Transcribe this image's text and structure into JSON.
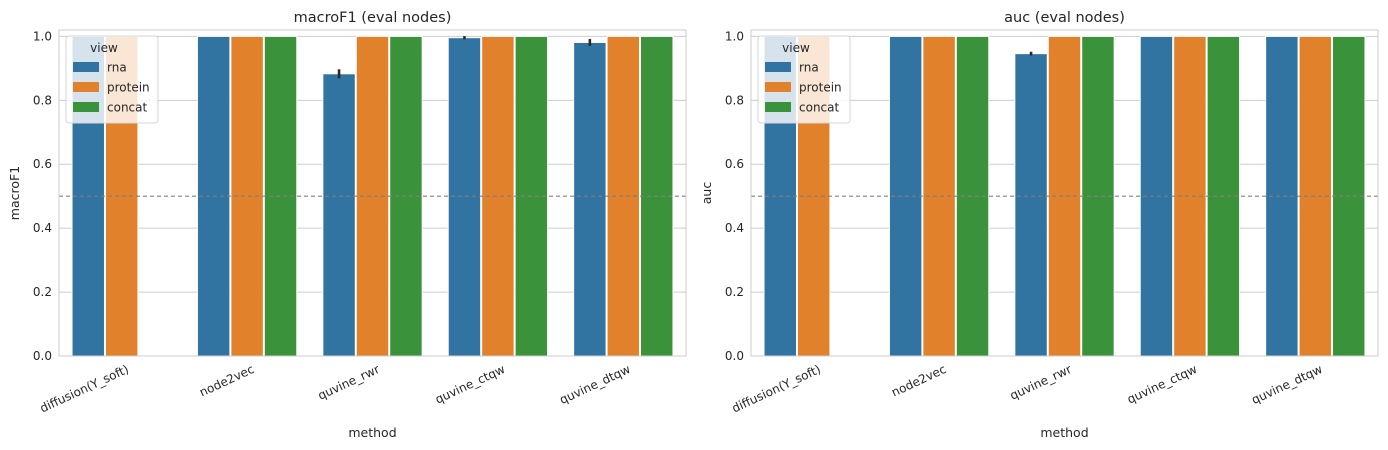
{
  "colors": {
    "rna": "#3274a1",
    "protein": "#e1812c",
    "concat": "#3a923a",
    "grid": "#cccccc",
    "refline": "#808080",
    "errbar": "#2b2b2b"
  },
  "chart_data": [
    {
      "type": "bar",
      "title": "macroF1 (eval nodes)",
      "xlabel": "method",
      "ylabel": "macroF1",
      "ylim": [
        0,
        1.02
      ],
      "yticks": [
        "0.0",
        "0.2",
        "0.4",
        "0.6",
        "0.8",
        "1.0"
      ],
      "grid": true,
      "reference_line": 0.5,
      "categories": [
        "diffusion(Y_soft)",
        "node2vec",
        "quvine_rwr",
        "quvine_ctqw",
        "quvine_dtqw"
      ],
      "legend": {
        "title": "view",
        "placement": "upper-left"
      },
      "series": [
        {
          "name": "rna",
          "values": [
            1.0,
            1.0,
            0.883,
            0.996,
            0.981
          ],
          "error": [
            0,
            0,
            0.014,
            0.005,
            0.011
          ]
        },
        {
          "name": "protein",
          "values": [
            1.0,
            1.0,
            1.0,
            1.0,
            1.0
          ],
          "error": [
            0,
            0,
            0,
            0,
            0
          ]
        },
        {
          "name": "concat",
          "values": [
            null,
            1.0,
            1.0,
            1.0,
            1.0
          ],
          "error": [
            0,
            0,
            0,
            0,
            0
          ]
        }
      ]
    },
    {
      "type": "bar",
      "title": "auc (eval nodes)",
      "xlabel": "method",
      "ylabel": "auc",
      "ylim": [
        0,
        1.02
      ],
      "yticks": [
        "0.0",
        "0.2",
        "0.4",
        "0.6",
        "0.8",
        "1.0"
      ],
      "grid": true,
      "reference_line": 0.5,
      "categories": [
        "diffusion(Y_soft)",
        "node2vec",
        "quvine_rwr",
        "quvine_ctqw",
        "quvine_dtqw"
      ],
      "legend": {
        "title": "view",
        "placement": "upper-left"
      },
      "series": [
        {
          "name": "rna",
          "values": [
            1.0,
            1.0,
            0.946,
            1.0,
            1.0
          ],
          "error": [
            0,
            0,
            0.006,
            0,
            0
          ]
        },
        {
          "name": "protein",
          "values": [
            1.0,
            1.0,
            1.0,
            1.0,
            1.0
          ],
          "error": [
            0,
            0,
            0,
            0,
            0
          ]
        },
        {
          "name": "concat",
          "values": [
            null,
            1.0,
            1.0,
            1.0,
            1.0
          ],
          "error": [
            0,
            0,
            0,
            0,
            0
          ]
        }
      ]
    }
  ]
}
